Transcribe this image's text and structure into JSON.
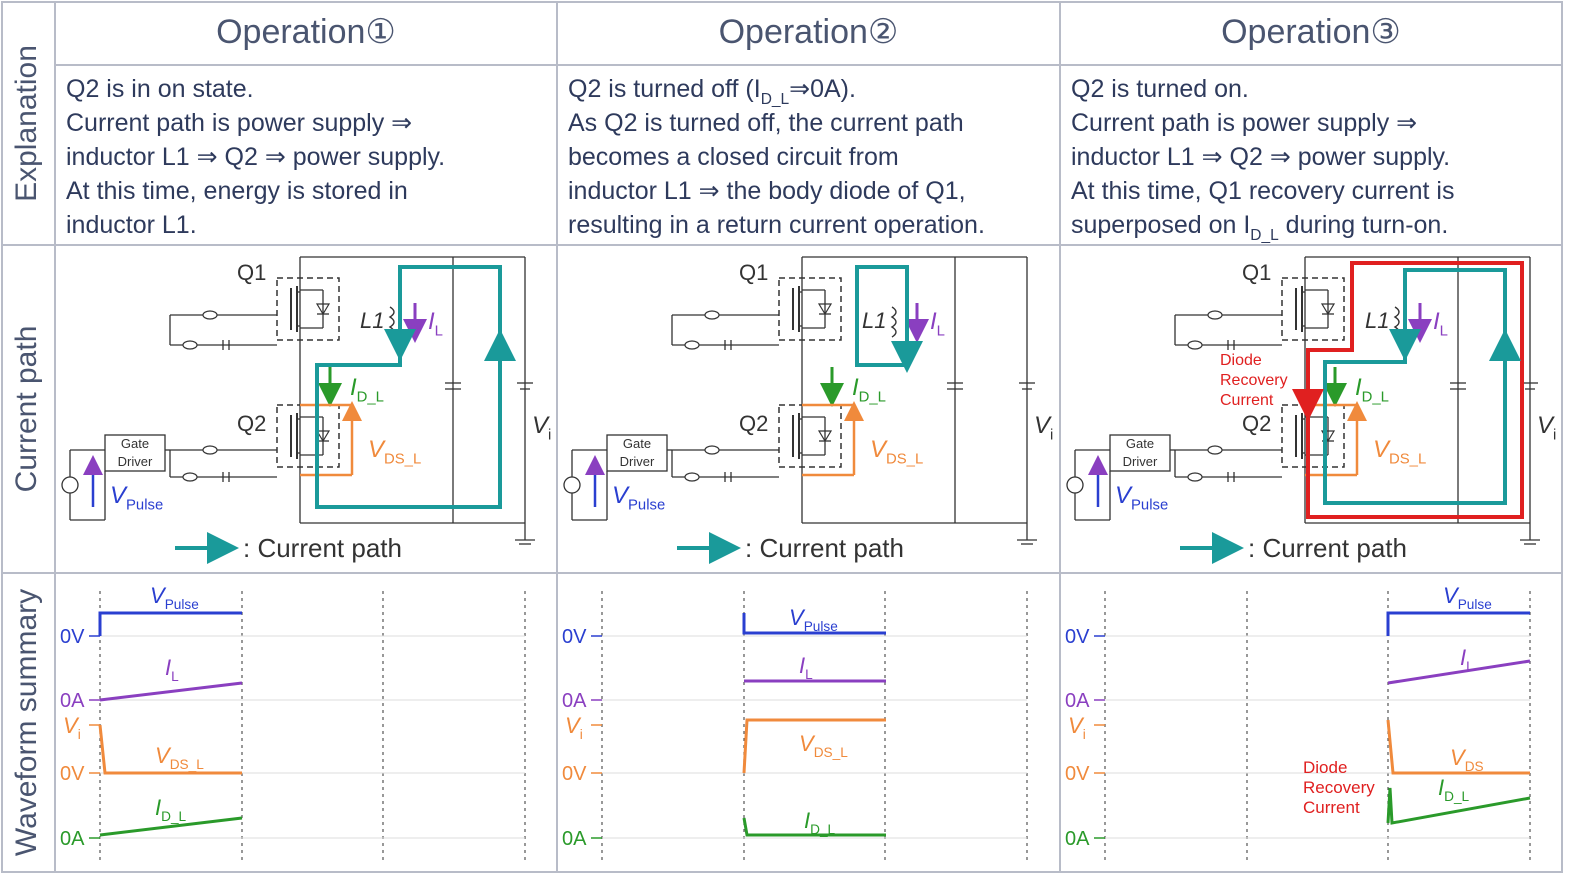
{
  "header": {
    "row_labels": [
      "Explanation",
      "Current path",
      "Waveform summary"
    ]
  },
  "columns": [
    {
      "title": "Operation①",
      "explanation": [
        [
          "Q2 is in on state."
        ],
        [
          "Current path is power supply ⇒"
        ],
        [
          "inductor L1 ⇒ Q2 ⇒ power supply."
        ],
        [
          "At this time, energy is stored in"
        ],
        [
          "inductor L1."
        ]
      ],
      "circuit": {
        "q1": "Q1",
        "q2": "Q2",
        "l1": "L1",
        "i_l": [
          "I",
          "L"
        ],
        "i_d_l": [
          "I",
          "D_L"
        ],
        "v_ds_l": [
          "V",
          "DS_L"
        ],
        "v_i": [
          "V",
          "i"
        ],
        "v_pulse": [
          "V",
          "Pulse"
        ],
        "gate_driver": [
          "Gate",
          "Driver"
        ],
        "legend": ": Current path"
      },
      "waveform": {
        "v_pulse": [
          "V",
          "Pulse"
        ],
        "v_pulse_zero": "0V",
        "i_l": [
          "I",
          "L"
        ],
        "i_l_zero": "0A",
        "v_i": [
          "V",
          "i"
        ],
        "v_ds_zero": "0V",
        "v_ds_l": [
          "V",
          "DS_L"
        ],
        "i_d_l": [
          "I",
          "D_L"
        ],
        "i_d_zero": "0A"
      }
    },
    {
      "title": "Operation②",
      "explanation": [
        [
          "Q2 is turned off (I",
          "D_L",
          "⇒0A)."
        ],
        [
          "As Q2 is turned off, the current path"
        ],
        [
          "becomes a closed circuit from"
        ],
        [
          "inductor L1 ⇒ the body diode of Q1,"
        ],
        [
          "resulting in a return current operation."
        ]
      ],
      "circuit": {
        "q1": "Q1",
        "q2": "Q2",
        "l1": "L1",
        "i_l": [
          "I",
          "L"
        ],
        "i_d_l": [
          "I",
          "D_L"
        ],
        "v_ds_l": [
          "V",
          "DS_L"
        ],
        "v_i": [
          "V",
          "i"
        ],
        "v_pulse": [
          "V",
          "Pulse"
        ],
        "gate_driver": [
          "Gate",
          "Driver"
        ],
        "legend": ": Current path"
      },
      "waveform": {
        "v_pulse": [
          "V",
          "Pulse"
        ],
        "v_pulse_zero": "0V",
        "i_l": [
          "I",
          "L"
        ],
        "i_l_zero": "0A",
        "v_i": [
          "V",
          "i"
        ],
        "v_ds_zero": "0V",
        "v_ds_l": [
          "V",
          "DS_L"
        ],
        "i_d_l": [
          "I",
          "D_L"
        ],
        "i_d_zero": "0A"
      }
    },
    {
      "title": "Operation③",
      "explanation": [
        [
          "Q2 is turned on."
        ],
        [
          "Current path is power supply ⇒"
        ],
        [
          "inductor L1 ⇒ Q2 ⇒ power supply."
        ],
        [
          "At this time, Q1 recovery current is"
        ],
        [
          "superposed on I",
          "D_L",
          " during turn-on."
        ]
      ],
      "circuit": {
        "q1": "Q1",
        "q2": "Q2",
        "l1": "L1",
        "i_l": [
          "I",
          "L"
        ],
        "i_d_l": [
          "I",
          "D_L"
        ],
        "v_ds_l": [
          "V",
          "DS_L"
        ],
        "v_i": [
          "V",
          "i"
        ],
        "v_pulse": [
          "V",
          "Pulse"
        ],
        "gate_driver": [
          "Gate",
          "Driver"
        ],
        "legend": ": Current path",
        "diode_recovery": [
          "Diode",
          "Recovery",
          "Current"
        ]
      },
      "waveform": {
        "v_pulse": [
          "V",
          "Pulse"
        ],
        "v_pulse_zero": "0V",
        "i_l": [
          "I",
          "L"
        ],
        "i_l_zero": "0A",
        "v_i": [
          "V",
          "i"
        ],
        "v_ds_zero": "0V",
        "v_ds_l": [
          "V",
          "DS"
        ],
        "i_d_l": [
          "I",
          "D_L"
        ],
        "i_d_zero": "0A",
        "diode_recovery": [
          "Diode",
          "Recovery",
          "Current"
        ]
      }
    }
  ]
}
